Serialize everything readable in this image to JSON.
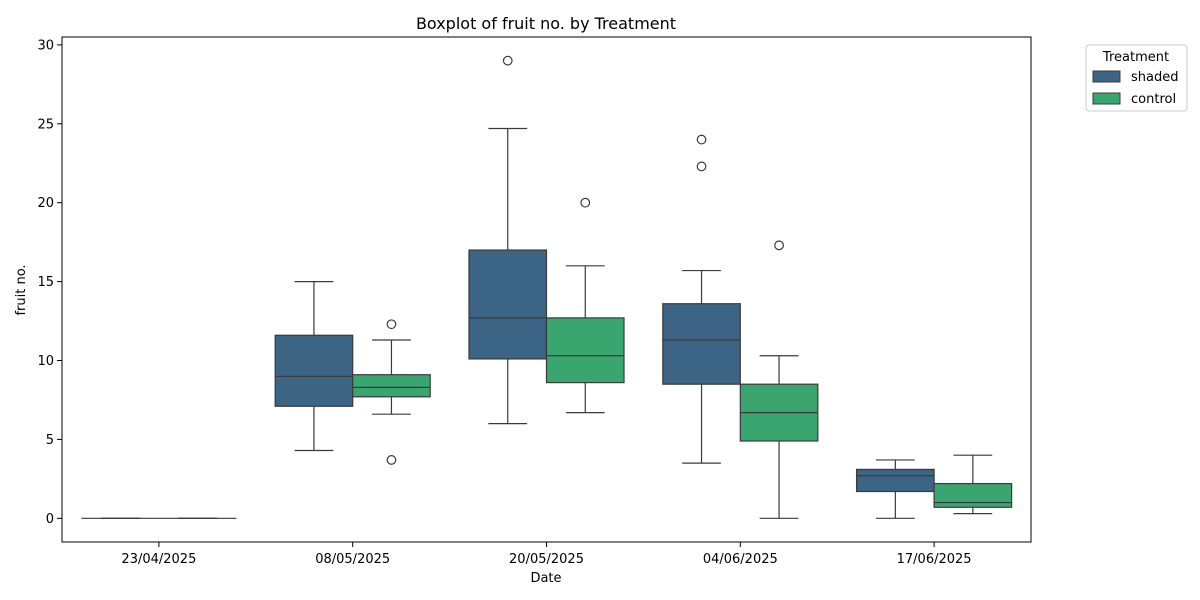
{
  "chart_data": {
    "type": "boxplot",
    "title": "Boxplot of fruit no. by Treatment",
    "xlabel": "Date",
    "ylabel": "fruit no.",
    "categories": [
      "23/04/2025",
      "08/05/2025",
      "20/05/2025",
      "04/06/2025",
      "17/06/2025"
    ],
    "ylim": [
      -1.5,
      30.5
    ],
    "yticks": [
      0,
      5,
      10,
      15,
      20,
      25,
      30
    ],
    "grid": false,
    "legend": {
      "title": "Treatment",
      "position": "outside-top-right"
    },
    "series": [
      {
        "name": "shaded",
        "color": "#3b6485",
        "boxes": [
          {
            "whisker_low": 0,
            "q1": 0,
            "median": 0,
            "q3": 0,
            "whisker_high": 0,
            "outliers": []
          },
          {
            "whisker_low": 4.3,
            "q1": 7.1,
            "median": 9.0,
            "q3": 11.6,
            "whisker_high": 15.0,
            "outliers": []
          },
          {
            "whisker_low": 6.0,
            "q1": 10.1,
            "median": 12.7,
            "q3": 17.0,
            "whisker_high": 24.7,
            "outliers": [
              29.0
            ]
          },
          {
            "whisker_low": 3.5,
            "q1": 8.5,
            "median": 11.3,
            "q3": 13.6,
            "whisker_high": 15.7,
            "outliers": [
              24.0,
              22.3
            ]
          },
          {
            "whisker_low": 0,
            "q1": 1.7,
            "median": 2.7,
            "q3": 3.1,
            "whisker_high": 3.7,
            "outliers": []
          }
        ]
      },
      {
        "name": "control",
        "color": "#3aa66f",
        "boxes": [
          {
            "whisker_low": 0,
            "q1": 0,
            "median": 0,
            "q3": 0,
            "whisker_high": 0,
            "outliers": []
          },
          {
            "whisker_low": 6.6,
            "q1": 7.7,
            "median": 8.3,
            "q3": 9.1,
            "whisker_high": 11.3,
            "outliers": [
              12.3,
              3.7
            ]
          },
          {
            "whisker_low": 6.7,
            "q1": 8.6,
            "median": 10.3,
            "q3": 12.7,
            "whisker_high": 16.0,
            "outliers": [
              20.0
            ]
          },
          {
            "whisker_low": 0,
            "q1": 4.9,
            "median": 6.7,
            "q3": 8.5,
            "whisker_high": 10.3,
            "outliers": [
              17.3
            ]
          },
          {
            "whisker_low": 0.3,
            "q1": 0.7,
            "median": 1.0,
            "q3": 2.2,
            "whisker_high": 4.0,
            "outliers": []
          }
        ]
      }
    ]
  }
}
